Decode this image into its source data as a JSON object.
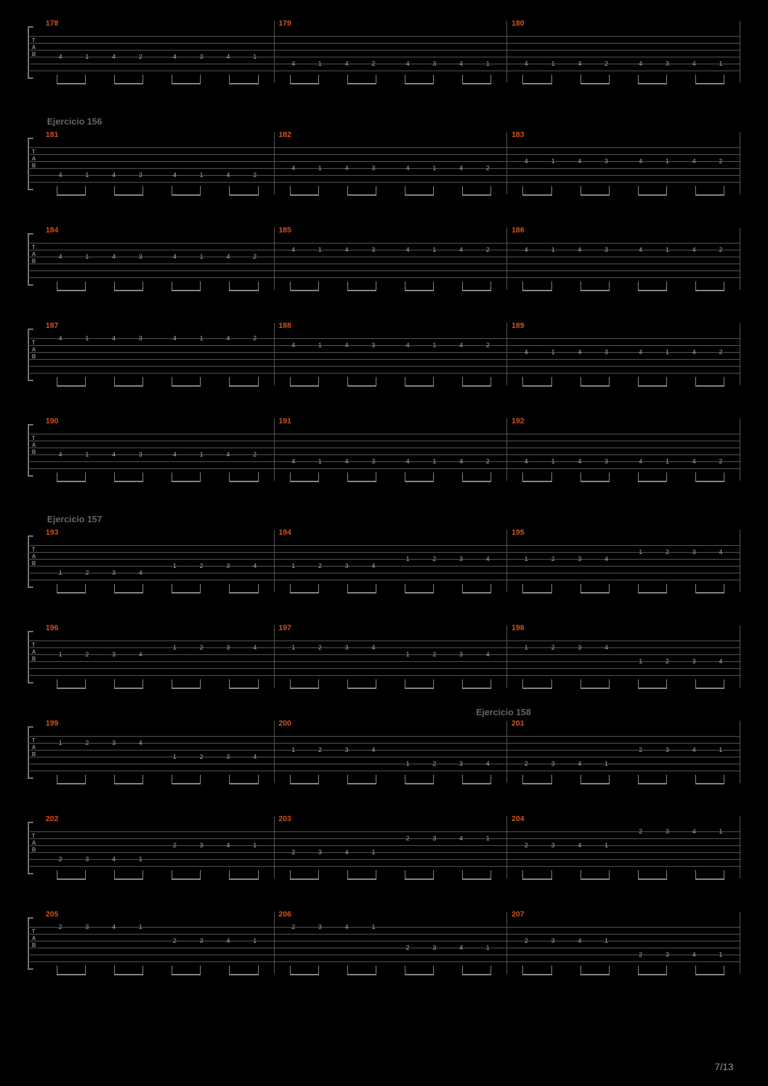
{
  "page_number": "7/13",
  "background_color": "#000000",
  "line_color": "#555555",
  "measure_number_color": "#d4521a",
  "exercise_label_color": "#666666",
  "note_color": "#aaaaaa",
  "tab_letters": [
    "T",
    "A",
    "B"
  ],
  "rows": [
    {
      "exercise": null,
      "measures": [
        {
          "n": "178",
          "notes": [
            "4",
            "1",
            "4",
            "2",
            "4",
            "3",
            "4",
            "1"
          ],
          "string": 4
        },
        {
          "n": "179",
          "notes": [
            "4",
            "1",
            "4",
            "2",
            "4",
            "3",
            "4",
            "1"
          ],
          "string": 5
        },
        {
          "n": "180",
          "notes": [
            "4",
            "1",
            "4",
            "2",
            "4",
            "3",
            "4",
            "1"
          ],
          "string": 5
        }
      ]
    },
    {
      "exercise": "Ejercicio 156",
      "measures": [
        {
          "n": "181",
          "notes": [
            "4",
            "1",
            "4",
            "3",
            "4",
            "1",
            "4",
            "2"
          ],
          "string": 5
        },
        {
          "n": "182",
          "notes": [
            "4",
            "1",
            "4",
            "3",
            "4",
            "1",
            "4",
            "2"
          ],
          "string": 4
        },
        {
          "n": "183",
          "notes": [
            "4",
            "1",
            "4",
            "3",
            "4",
            "1",
            "4",
            "2"
          ],
          "string": 3
        }
      ]
    },
    {
      "exercise": null,
      "measures": [
        {
          "n": "184",
          "notes": [
            "4",
            "1",
            "4",
            "3",
            "4",
            "1",
            "4",
            "2"
          ],
          "string": 3
        },
        {
          "n": "185",
          "notes": [
            "4",
            "1",
            "4",
            "3",
            "4",
            "1",
            "4",
            "2"
          ],
          "string": 2
        },
        {
          "n": "186",
          "notes": [
            "4",
            "1",
            "4",
            "3",
            "4",
            "1",
            "4",
            "2"
          ],
          "string": 2
        }
      ]
    },
    {
      "exercise": null,
      "measures": [
        {
          "n": "187",
          "notes": [
            "4",
            "1",
            "4",
            "3",
            "4",
            "1",
            "4",
            "2"
          ],
          "string": 1
        },
        {
          "n": "188",
          "notes": [
            "4",
            "1",
            "4",
            "3",
            "4",
            "1",
            "4",
            "2"
          ],
          "string": 2
        },
        {
          "n": "189",
          "notes": [
            "4",
            "1",
            "4",
            "3",
            "4",
            "1",
            "4",
            "2"
          ],
          "string": 3
        }
      ]
    },
    {
      "exercise": null,
      "measures": [
        {
          "n": "190",
          "notes": [
            "4",
            "1",
            "4",
            "3",
            "4",
            "1",
            "4",
            "2"
          ],
          "string": 4
        },
        {
          "n": "191",
          "notes": [
            "4",
            "1",
            "4",
            "3",
            "4",
            "1",
            "4",
            "2"
          ],
          "string": 5
        },
        {
          "n": "192",
          "notes": [
            "4",
            "1",
            "4",
            "3",
            "4",
            "1",
            "4",
            "2"
          ],
          "string": 5
        }
      ]
    },
    {
      "exercise": "Ejercicio 157",
      "measures": [
        {
          "n": "193",
          "notes": [
            "1",
            "2",
            "3",
            "4",
            "1",
            "2",
            "3",
            "4"
          ],
          "string": 5,
          "shift": [
            5,
            4
          ]
        },
        {
          "n": "194",
          "notes": [
            "1",
            "2",
            "3",
            "4",
            "1",
            "2",
            "3",
            "4"
          ],
          "string": 4,
          "shift": [
            4,
            3
          ]
        },
        {
          "n": "195",
          "notes": [
            "1",
            "2",
            "3",
            "4",
            "1",
            "2",
            "3",
            "4"
          ],
          "string": 3,
          "shift": [
            3,
            2
          ]
        }
      ]
    },
    {
      "exercise": null,
      "measures": [
        {
          "n": "196",
          "notes": [
            "1",
            "2",
            "3",
            "4",
            "1",
            "2",
            "3",
            "4"
          ],
          "string": 3,
          "shift": [
            3,
            2
          ]
        },
        {
          "n": "197",
          "notes": [
            "1",
            "2",
            "3",
            "4",
            "1",
            "2",
            "3",
            "4"
          ],
          "string": 2,
          "shift": [
            2,
            3
          ]
        },
        {
          "n": "198",
          "notes": [
            "1",
            "2",
            "3",
            "4",
            "1",
            "2",
            "3",
            "4"
          ],
          "string": 2,
          "shift": [
            2,
            4
          ]
        }
      ]
    },
    {
      "exercise": null,
      "exercise_right": "Ejercicio 158",
      "measures": [
        {
          "n": "199",
          "notes": [
            "1",
            "2",
            "3",
            "4",
            "1",
            "2",
            "3",
            "4"
          ],
          "string": 2,
          "shift": [
            2,
            4
          ]
        },
        {
          "n": "200",
          "notes": [
            "1",
            "2",
            "3",
            "4",
            "1",
            "2",
            "3",
            "4"
          ],
          "string": 3,
          "shift": [
            3,
            5
          ]
        },
        {
          "n": "201",
          "notes": [
            "2",
            "3",
            "4",
            "1",
            "2",
            "3",
            "4",
            "1"
          ],
          "string": 5,
          "shift": [
            5,
            3
          ]
        }
      ]
    },
    {
      "exercise": null,
      "measures": [
        {
          "n": "202",
          "notes": [
            "2",
            "3",
            "4",
            "1",
            "2",
            "3",
            "4",
            "1"
          ],
          "string": 5,
          "shift": [
            5,
            3
          ]
        },
        {
          "n": "203",
          "notes": [
            "2",
            "3",
            "4",
            "1",
            "2",
            "3",
            "4",
            "1"
          ],
          "string": 4,
          "shift": [
            4,
            2
          ]
        },
        {
          "n": "204",
          "notes": [
            "2",
            "3",
            "4",
            "1",
            "2",
            "3",
            "4",
            "1"
          ],
          "string": 3,
          "shift": [
            3,
            1
          ]
        }
      ]
    },
    {
      "exercise": null,
      "measures": [
        {
          "n": "205",
          "notes": [
            "2",
            "3",
            "4",
            "1",
            "2",
            "3",
            "4",
            "1"
          ],
          "string": 1,
          "shift": [
            1,
            3
          ]
        },
        {
          "n": "206",
          "notes": [
            "2",
            "3",
            "4",
            "1",
            "2",
            "3",
            "4",
            "1"
          ],
          "string": 1,
          "shift": [
            1,
            4
          ]
        },
        {
          "n": "207",
          "notes": [
            "2",
            "3",
            "4",
            "1",
            "2",
            "3",
            "4",
            "1"
          ],
          "string": 3,
          "shift": [
            3,
            5
          ]
        }
      ]
    }
  ]
}
